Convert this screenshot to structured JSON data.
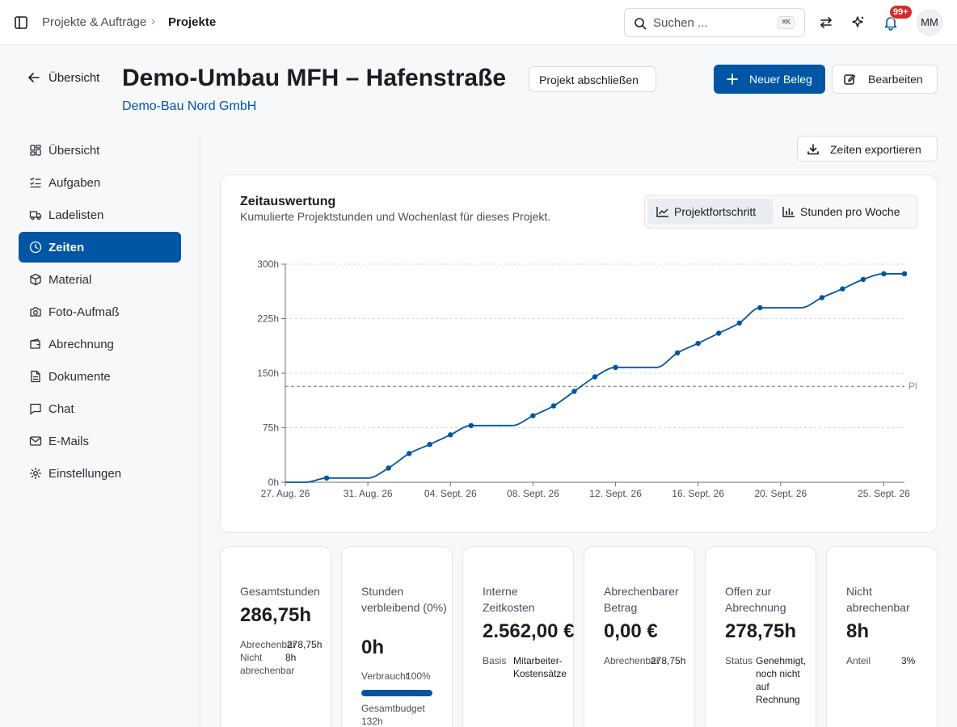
{
  "topbar": {
    "breadcrumb": [
      "Projekte & Aufträge",
      "Projekte"
    ],
    "search_placeholder": "Suchen ...",
    "search_shortcut": "⌘K",
    "notification_count": "99+",
    "user_initials": "MM"
  },
  "header": {
    "back_label": "Übersicht",
    "title": "Demo-Umbau MFH – Hafenstraße",
    "company": "Demo-Bau Nord GmbH",
    "close_project_label": "Projekt abschließen",
    "new_document_label": "Neuer Beleg",
    "edit_label": "Bearbeiten",
    "accent_color": "#0055a4"
  },
  "sidebar": {
    "items": [
      {
        "label": "Übersicht",
        "icon": "dashboard-icon",
        "active": false
      },
      {
        "label": "Aufgaben",
        "icon": "tasks-icon",
        "active": false
      },
      {
        "label": "Ladelisten",
        "icon": "truck-icon",
        "active": false
      },
      {
        "label": "Zeiten",
        "icon": "clock-icon",
        "active": true
      },
      {
        "label": "Material",
        "icon": "package-icon",
        "active": false
      },
      {
        "label": "Foto-Aufmaß",
        "icon": "camera-icon",
        "active": false
      },
      {
        "label": "Abrechnung",
        "icon": "wallet-icon",
        "active": false
      },
      {
        "label": "Dokumente",
        "icon": "document-icon",
        "active": false
      },
      {
        "label": "Chat",
        "icon": "chat-icon",
        "active": false
      },
      {
        "label": "E-Mails",
        "icon": "mail-icon",
        "active": false
      },
      {
        "label": "Einstellungen",
        "icon": "gear-icon",
        "active": false
      }
    ]
  },
  "main": {
    "export_label": "Zeiten exportieren",
    "chart_card": {
      "title": "Zeitauswertung",
      "subtitle": "Kumulierte Projektstunden und Wochenlast für dieses Projekt.",
      "tabs": [
        {
          "label": "Projektfortschritt",
          "active": true
        },
        {
          "label": "Stunden pro Woche",
          "active": false
        }
      ]
    },
    "stats": [
      {
        "label": "Gesamtstunden",
        "value": "286,75h",
        "meta": [
          {
            "k": "Abrechenbar",
            "v": "278,75h"
          },
          {
            "k": "Nicht abrechenbar",
            "v": "8h"
          }
        ]
      },
      {
        "label": "Stunden verbleibend (0%)",
        "value": "0h",
        "progress_label": "Verbraucht",
        "progress_value": "100%",
        "progress": 1.0,
        "budget_label": "Gesamtbudget 132h"
      },
      {
        "label": "Interne Zeitkosten",
        "value": "2.562,00 €",
        "meta": [
          {
            "k": "Basis",
            "v": "Mitarbeiter-Kostensätze"
          }
        ]
      },
      {
        "label": "Abrechenbarer Betrag",
        "value": "0,00 €",
        "meta": [
          {
            "k": "Abrechenbar",
            "v": "278,75h"
          }
        ]
      },
      {
        "label": "Offen zur Abrechnung",
        "value": "278,75h",
        "meta": [
          {
            "k": "Status",
            "v": "Genehmigt, noch nicht auf Rechnung"
          }
        ]
      },
      {
        "label": "Nicht abrechenbar",
        "value": "8h",
        "meta": [
          {
            "k": "Anteil",
            "v": "3%"
          }
        ]
      }
    ]
  },
  "chart_data": {
    "type": "line",
    "ylim": [
      0,
      300
    ],
    "yticks": [
      "0h",
      "75h",
      "150h",
      "225h",
      "300h"
    ],
    "ytick_values": [
      0,
      75,
      150,
      225,
      300
    ],
    "xlim": [
      "2026-08-27",
      "2026-09-26"
    ],
    "xticks": [
      "27. Aug. 26",
      "31. Aug. 26",
      "04. Sept. 26",
      "08. Sept. 26",
      "12. Sept. 26",
      "16. Sept. 26",
      "20. Sept. 26",
      "25. Sept. 26"
    ],
    "xtick_dates": [
      "2026-08-27",
      "2026-08-31",
      "2026-09-04",
      "2026-09-08",
      "2026-09-12",
      "2026-09-16",
      "2026-09-20",
      "2026-09-25"
    ],
    "grid": true,
    "reference_line": {
      "value": 132,
      "label": "Pl"
    },
    "series": [
      {
        "color": "#0055a4",
        "line_points": [
          {
            "x": "2026-08-27",
            "y": 0
          },
          {
            "x": "2026-08-28",
            "y": 0
          },
          {
            "x": "2026-08-29",
            "y": 5.75
          },
          {
            "x": "2026-08-30",
            "y": 5.75
          },
          {
            "x": "2026-08-31",
            "y": 5.75
          },
          {
            "x": "2026-09-01",
            "y": 19.5
          },
          {
            "x": "2026-09-02",
            "y": 39.5
          },
          {
            "x": "2026-09-03",
            "y": 52
          },
          {
            "x": "2026-09-04",
            "y": 65.25
          },
          {
            "x": "2026-09-05",
            "y": 78
          },
          {
            "x": "2026-09-06",
            "y": 78
          },
          {
            "x": "2026-09-07",
            "y": 78
          },
          {
            "x": "2026-09-08",
            "y": 91.5
          },
          {
            "x": "2026-09-09",
            "y": 105
          },
          {
            "x": "2026-09-10",
            "y": 125
          },
          {
            "x": "2026-09-11",
            "y": 145
          },
          {
            "x": "2026-09-12",
            "y": 158
          },
          {
            "x": "2026-09-13",
            "y": 158
          },
          {
            "x": "2026-09-14",
            "y": 158
          },
          {
            "x": "2026-09-15",
            "y": 178
          },
          {
            "x": "2026-09-16",
            "y": 191
          },
          {
            "x": "2026-09-17",
            "y": 205
          },
          {
            "x": "2026-09-18",
            "y": 219
          },
          {
            "x": "2026-09-19",
            "y": 240
          },
          {
            "x": "2026-09-20",
            "y": 240
          },
          {
            "x": "2026-09-21",
            "y": 240
          },
          {
            "x": "2026-09-22",
            "y": 254
          },
          {
            "x": "2026-09-23",
            "y": 266
          },
          {
            "x": "2026-09-24",
            "y": 279
          },
          {
            "x": "2026-09-25",
            "y": 286.75
          },
          {
            "x": "2026-09-26",
            "y": 286.75
          }
        ],
        "points": [
          {
            "x": "2026-08-29",
            "y": 5.75
          },
          {
            "x": "2026-09-01",
            "y": 19.5
          },
          {
            "x": "2026-09-02",
            "y": 39.5
          },
          {
            "x": "2026-09-03",
            "y": 52
          },
          {
            "x": "2026-09-04",
            "y": 65.25
          },
          {
            "x": "2026-09-05",
            "y": 78
          },
          {
            "x": "2026-09-08",
            "y": 91.5
          },
          {
            "x": "2026-09-09",
            "y": 105
          },
          {
            "x": "2026-09-10",
            "y": 125
          },
          {
            "x": "2026-09-11",
            "y": 145
          },
          {
            "x": "2026-09-12",
            "y": 158
          },
          {
            "x": "2026-09-15",
            "y": 178
          },
          {
            "x": "2026-09-16",
            "y": 191
          },
          {
            "x": "2026-09-17",
            "y": 205
          },
          {
            "x": "2026-09-18",
            "y": 219
          },
          {
            "x": "2026-09-19",
            "y": 240
          },
          {
            "x": "2026-09-22",
            "y": 254
          },
          {
            "x": "2026-09-23",
            "y": 266
          },
          {
            "x": "2026-09-24",
            "y": 279
          },
          {
            "x": "2026-09-25",
            "y": 286.75
          },
          {
            "x": "2026-09-26",
            "y": 286.75
          }
        ]
      }
    ]
  }
}
